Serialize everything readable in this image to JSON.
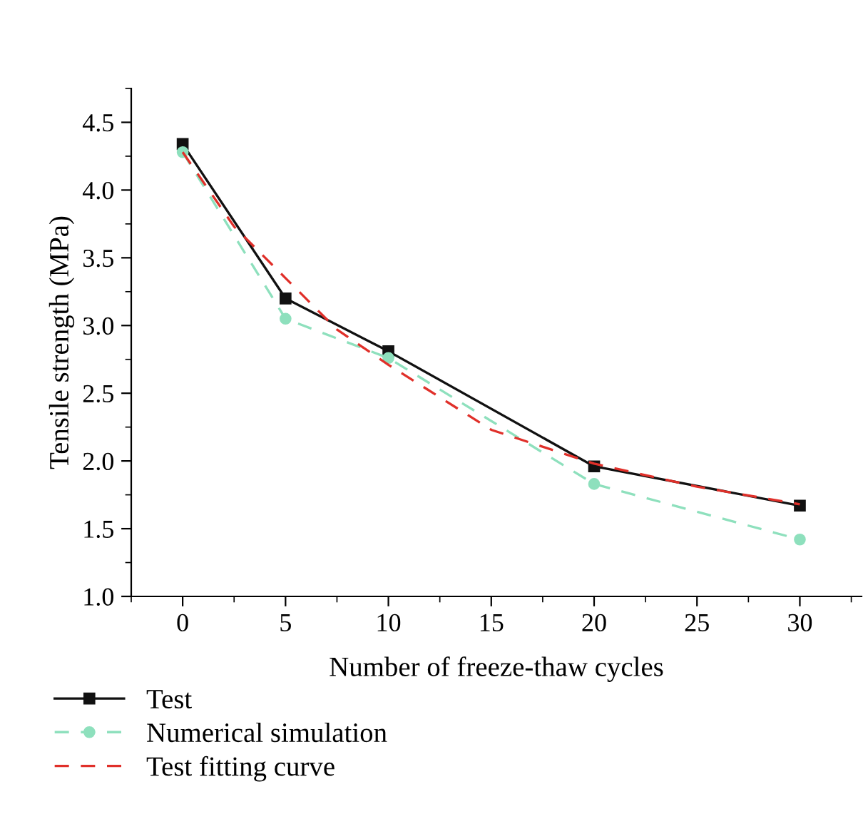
{
  "chart_data": {
    "type": "line",
    "xlabel": "Number of freeze-thaw cycles",
    "ylabel": "Tensile strength (MPa)",
    "xlim": [
      -2.5,
      33
    ],
    "xticks": [
      0,
      5,
      10,
      15,
      20,
      25,
      30
    ],
    "ylim": [
      1.0,
      4.75
    ],
    "yticks": [
      {
        "value": 1.0,
        "label": "1.0"
      },
      1.5,
      {
        "value": 2.0,
        "label": "2.0"
      },
      2.5,
      {
        "value": 3.0,
        "label": "3.0"
      },
      3.5,
      {
        "value": 4.0,
        "label": "4.0"
      },
      4.5
    ],
    "grid": false,
    "legend": "bottom left",
    "series": [
      {
        "name": "Test",
        "color": "#111111",
        "x": [
          0,
          5,
          10,
          20,
          30
        ],
        "values": [
          4.34,
          3.2,
          2.81,
          1.96,
          1.67
        ],
        "marker": "square",
        "line_style": "solid"
      },
      {
        "name": "Numerical simulation",
        "color": "#8ee0bd",
        "x": [
          0,
          5,
          10,
          20,
          30
        ],
        "values": [
          4.28,
          3.05,
          2.76,
          1.83,
          1.42
        ],
        "marker": "circle",
        "line_style": "dashed"
      },
      {
        "name": "Test fitting curve",
        "color": "#e0302a",
        "x": [
          0,
          2.5,
          5,
          7.5,
          10,
          15,
          20,
          25,
          30
        ],
        "values": [
          4.28,
          3.73,
          3.35,
          2.97,
          2.71,
          2.23,
          1.98,
          1.81,
          1.68
        ],
        "marker": "none",
        "line_style": "dashed"
      }
    ]
  }
}
